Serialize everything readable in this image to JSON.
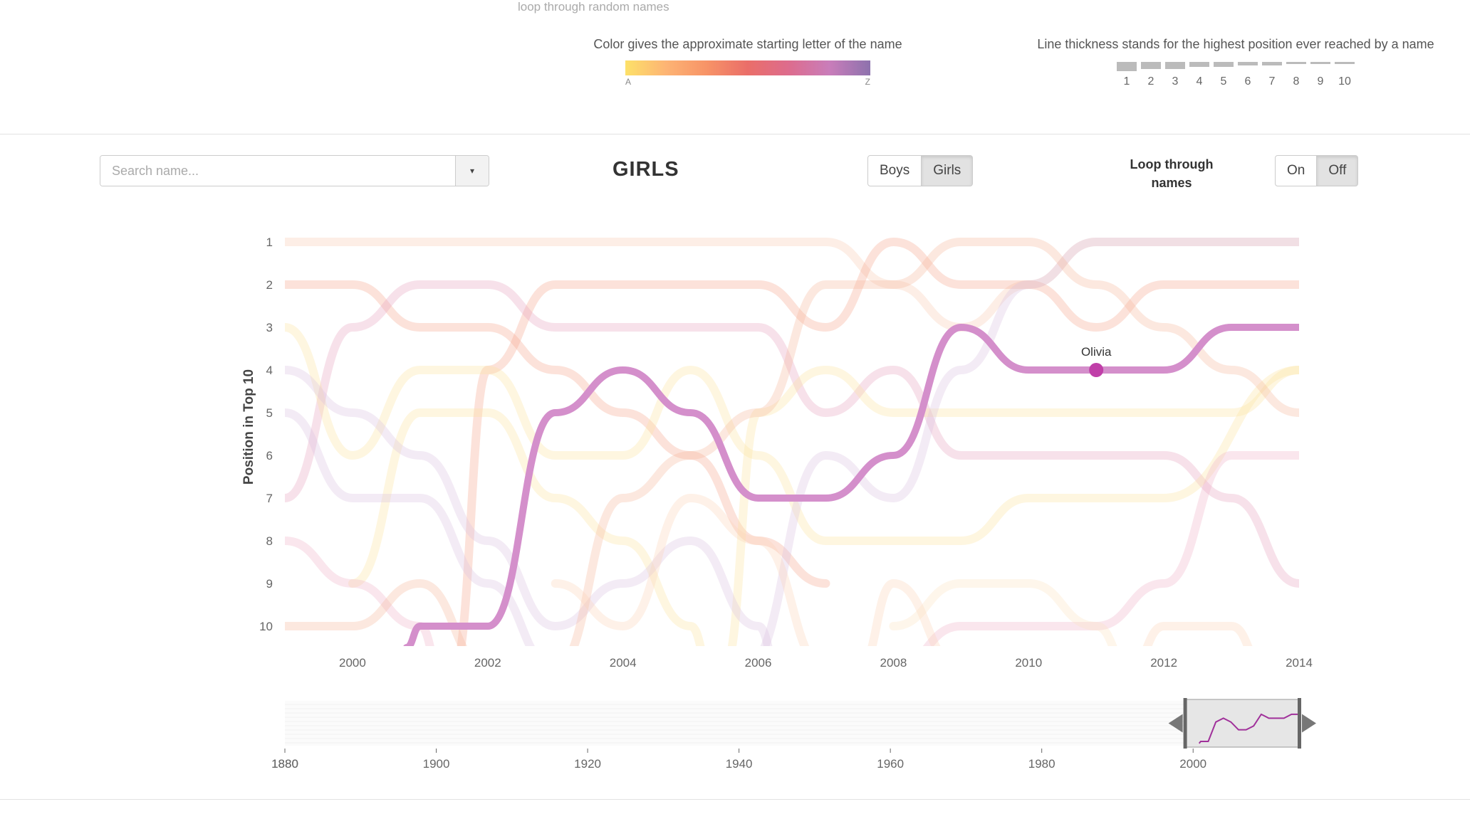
{
  "header": {
    "loop_link": "loop through random names",
    "color_legend": {
      "title": "Color gives the approximate starting letter of the name",
      "start": "A",
      "end": "Z"
    },
    "thickness_legend": {
      "title": "Line thickness stands for the highest position ever reached by a name",
      "ranks": [
        "1",
        "2",
        "3",
        "4",
        "5",
        "6",
        "7",
        "8",
        "9",
        "10"
      ]
    }
  },
  "controls": {
    "search_placeholder": "Search name...",
    "gender_title": "GIRLS",
    "gender_buttons": [
      "Boys",
      "Girls"
    ],
    "gender_active": "Girls",
    "loop_label": "Loop through names",
    "loop_buttons": [
      "On",
      "Off"
    ],
    "loop_active": "Off"
  },
  "chart_data": {
    "type": "line",
    "title": "",
    "xlabel": "",
    "ylabel": "Position in Top 10",
    "x_ticks": [
      2000,
      2002,
      2004,
      2006,
      2008,
      2010,
      2012,
      2014
    ],
    "y_ticks": [
      1,
      2,
      3,
      4,
      5,
      6,
      7,
      8,
      9,
      10
    ],
    "xlim": [
      1999,
      2014
    ],
    "ylim": [
      10,
      1
    ],
    "highlighted": {
      "name": "Olivia",
      "marker_x": 2011,
      "marker_y": 4,
      "color": "#d48fcb",
      "points": [
        [
          2000.8,
          10.5
        ],
        [
          2001,
          10
        ],
        [
          2002,
          10
        ],
        [
          2003,
          5
        ],
        [
          2004,
          4
        ],
        [
          2005,
          5
        ],
        [
          2006,
          7
        ],
        [
          2007,
          7
        ],
        [
          2008,
          6
        ],
        [
          2009,
          3
        ],
        [
          2010,
          4
        ],
        [
          2011,
          4
        ],
        [
          2012,
          4
        ],
        [
          2013,
          3
        ],
        [
          2014,
          3
        ]
      ]
    },
    "background_series": [
      {
        "color": "#f9c9b0",
        "points": [
          [
            1999,
            1
          ],
          [
            2007,
            1
          ],
          [
            2008,
            2
          ],
          [
            2009,
            3
          ],
          [
            2010,
            2
          ],
          [
            2011,
            1
          ],
          [
            2014,
            1
          ]
        ]
      },
      {
        "color": "#f7a48c",
        "points": [
          [
            1999,
            2
          ],
          [
            2000,
            2
          ],
          [
            2001,
            3
          ],
          [
            2002,
            3
          ],
          [
            2003,
            4
          ],
          [
            2004,
            5
          ],
          [
            2005,
            6
          ],
          [
            2006,
            8
          ],
          [
            2007,
            9
          ]
        ]
      },
      {
        "color": "#f7a48c",
        "points": [
          [
            2001.5,
            11
          ],
          [
            2002,
            4
          ],
          [
            2003,
            2
          ],
          [
            2006,
            2
          ],
          [
            2007,
            3
          ],
          [
            2008,
            1
          ],
          [
            2009,
            2
          ],
          [
            2010,
            2
          ],
          [
            2011,
            3
          ],
          [
            2012,
            2
          ],
          [
            2014,
            2
          ]
        ]
      },
      {
        "color": "#e7a1bd",
        "points": [
          [
            1999,
            7
          ],
          [
            2000,
            3
          ],
          [
            2001,
            2
          ],
          [
            2002,
            2
          ],
          [
            2003,
            3
          ],
          [
            2006,
            3
          ],
          [
            2007,
            5
          ],
          [
            2008,
            4
          ],
          [
            2009,
            6
          ],
          [
            2010,
            6
          ],
          [
            2012,
            6
          ],
          [
            2013,
            7
          ],
          [
            2014,
            9
          ]
        ]
      },
      {
        "color": "#fde3a0",
        "points": [
          [
            1999,
            3
          ],
          [
            2000,
            6
          ],
          [
            2001,
            4
          ],
          [
            2002,
            4
          ],
          [
            2003,
            6
          ],
          [
            2004,
            6
          ],
          [
            2005,
            4
          ],
          [
            2006,
            6
          ],
          [
            2007,
            8
          ],
          [
            2009,
            8
          ],
          [
            2010,
            7
          ],
          [
            2012,
            7
          ],
          [
            2014,
            4
          ]
        ]
      },
      {
        "color": "#fde3a0",
        "points": [
          [
            2000,
            9
          ],
          [
            2001,
            5
          ],
          [
            2002,
            5
          ],
          [
            2003,
            7
          ],
          [
            2004,
            8
          ],
          [
            2005,
            10
          ],
          [
            2005.3,
            11
          ]
        ]
      },
      {
        "color": "#fde3a0",
        "points": [
          [
            2005.5,
            11
          ],
          [
            2006,
            5
          ],
          [
            2007,
            4
          ],
          [
            2008,
            5
          ],
          [
            2010,
            5
          ],
          [
            2013,
            5
          ],
          [
            2014,
            4
          ]
        ]
      },
      {
        "color": "#d9c2e0",
        "points": [
          [
            1999,
            4
          ],
          [
            2000,
            5
          ],
          [
            2001,
            6
          ],
          [
            2002,
            8
          ],
          [
            2003,
            10
          ],
          [
            2004,
            9
          ],
          [
            2005,
            8
          ],
          [
            2006,
            10
          ],
          [
            2006.3,
            11
          ]
        ]
      },
      {
        "color": "#d9c2e0",
        "points": [
          [
            1999,
            5
          ],
          [
            2000,
            7
          ],
          [
            2001,
            7
          ],
          [
            2002,
            9
          ],
          [
            2003,
            11
          ]
        ]
      },
      {
        "color": "#d9c2e0",
        "points": [
          [
            2005.8,
            11
          ],
          [
            2007,
            6
          ],
          [
            2008,
            7
          ],
          [
            2009,
            4
          ],
          [
            2010,
            2
          ],
          [
            2011,
            1
          ],
          [
            2014,
            1
          ]
        ]
      },
      {
        "color": "#f0b0c8",
        "points": [
          [
            1999,
            8
          ],
          [
            2000,
            9
          ],
          [
            2001,
            10
          ],
          [
            2001.3,
            11
          ]
        ]
      },
      {
        "color": "#f0b0c8",
        "points": [
          [
            2008,
            11
          ],
          [
            2009,
            10
          ],
          [
            2011,
            10
          ],
          [
            2012,
            9
          ],
          [
            2013,
            6
          ],
          [
            2014,
            6
          ]
        ]
      },
      {
        "color": "#f7b89c",
        "points": [
          [
            1999,
            10
          ],
          [
            2000,
            10
          ],
          [
            2001,
            9
          ],
          [
            2002,
            11
          ]
        ]
      },
      {
        "color": "#f7b89c",
        "points": [
          [
            2003,
            11
          ],
          [
            2004,
            7
          ],
          [
            2005,
            6
          ],
          [
            2006,
            5
          ],
          [
            2007,
            2
          ],
          [
            2008,
            2
          ],
          [
            2009,
            1
          ],
          [
            2010,
            1
          ],
          [
            2011,
            2
          ],
          [
            2012,
            3
          ],
          [
            2013,
            4
          ],
          [
            2014,
            5
          ]
        ]
      },
      {
        "color": "#fcd3b8",
        "points": [
          [
            2003,
            9
          ],
          [
            2004,
            10
          ],
          [
            2005,
            7
          ],
          [
            2006,
            8
          ],
          [
            2007,
            11
          ]
        ]
      },
      {
        "color": "#fcd3b8",
        "points": [
          [
            2007.5,
            11
          ],
          [
            2008,
            9
          ],
          [
            2009,
            11
          ]
        ]
      },
      {
        "color": "#fcd3b8",
        "points": [
          [
            2011.5,
            11
          ],
          [
            2012,
            10
          ],
          [
            2013,
            10
          ],
          [
            2013.5,
            11
          ]
        ]
      },
      {
        "color": "#fbe4c0",
        "points": [
          [
            2008,
            10
          ],
          [
            2009,
            9
          ],
          [
            2010,
            9
          ],
          [
            2011,
            10
          ],
          [
            2011.5,
            11
          ]
        ]
      }
    ],
    "brush": {
      "x_ticks": [
        1880,
        1900,
        1920,
        1940,
        1960,
        1980,
        2000
      ],
      "xlim": [
        1880,
        2014
      ],
      "selection": [
        1999,
        2014
      ]
    }
  }
}
